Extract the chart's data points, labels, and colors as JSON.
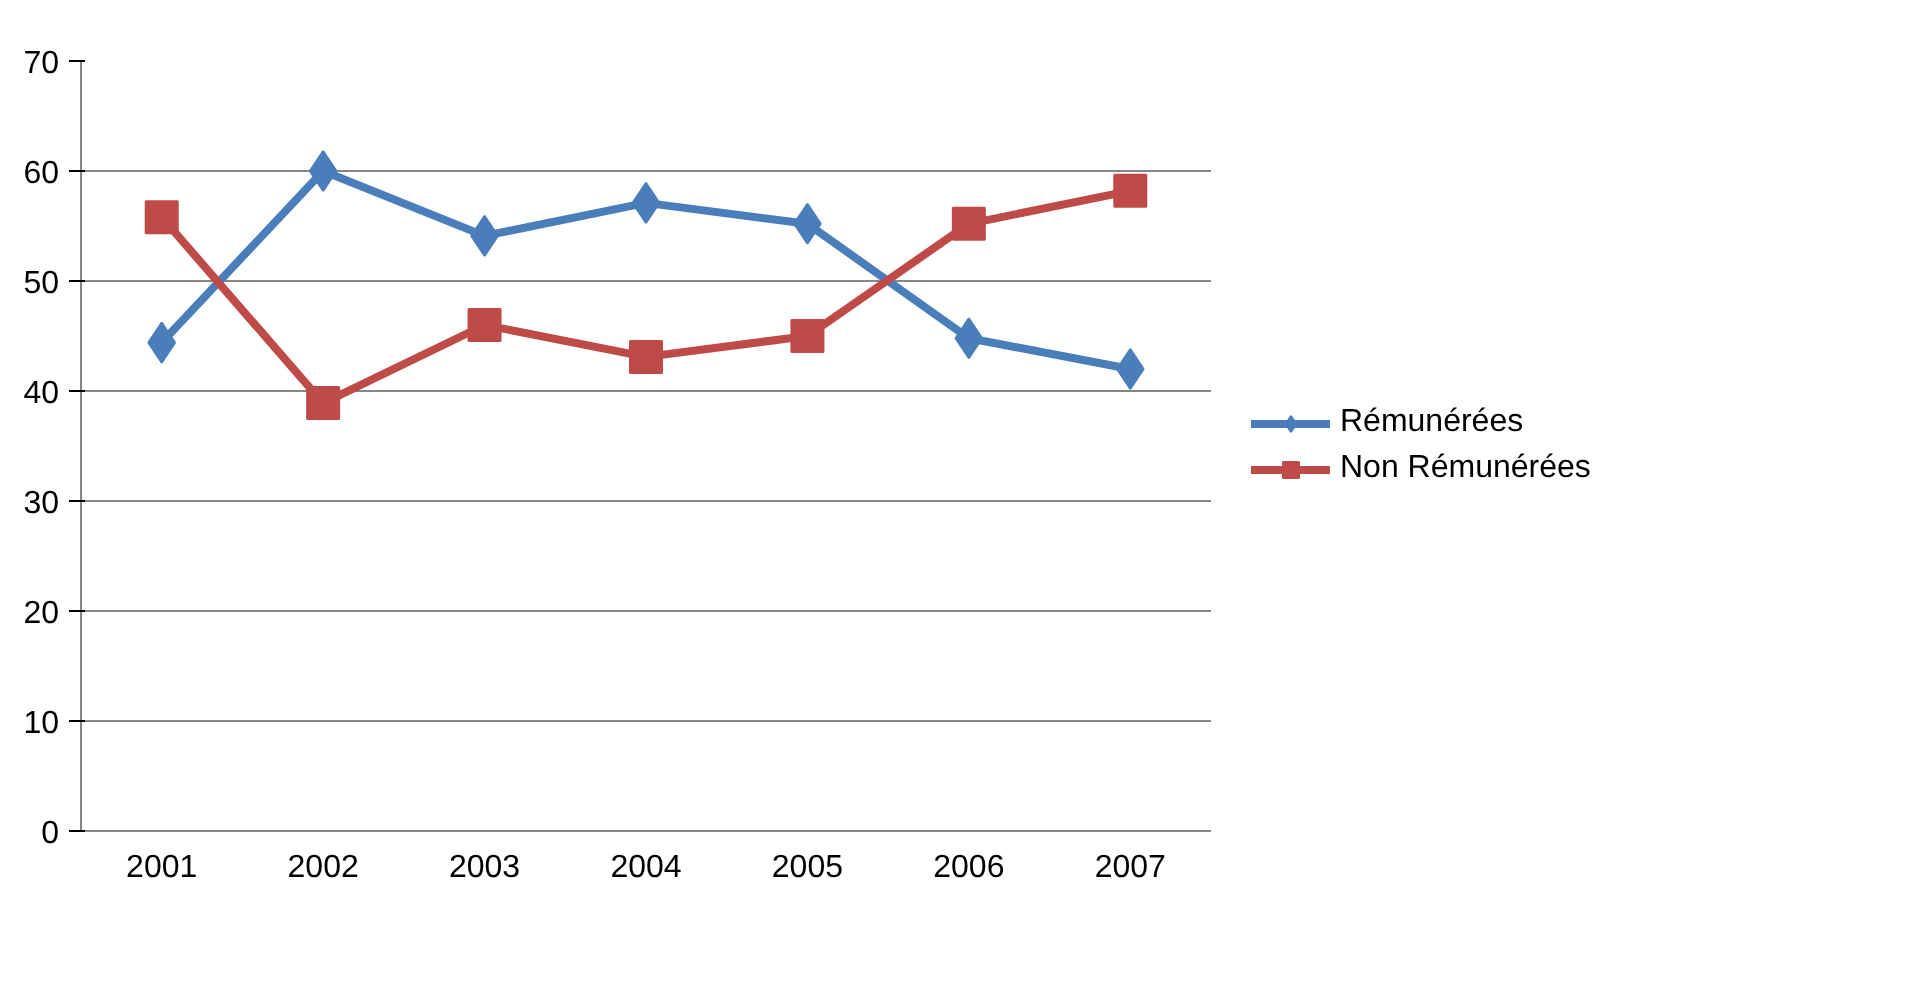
{
  "chart_data": {
    "type": "line",
    "categories": [
      "2001",
      "2002",
      "2003",
      "2004",
      "2005",
      "2006",
      "2007"
    ],
    "series": [
      {
        "name": "Rémunérées",
        "color": "#4a7ebb",
        "marker": "diamond",
        "values": [
          44.4,
          60,
          54.1,
          57.1,
          55.2,
          44.8,
          42
        ]
      },
      {
        "name": "Non Rémunérées",
        "color": "#be4b48",
        "marker": "square",
        "values": [
          55.8,
          38.9,
          46,
          43.1,
          45,
          55.2,
          58.2
        ]
      }
    ],
    "ylim": [
      0,
      70
    ],
    "yticks": [
      0,
      10,
      20,
      30,
      40,
      50,
      60,
      70
    ],
    "grid": "y",
    "legend": "right"
  }
}
